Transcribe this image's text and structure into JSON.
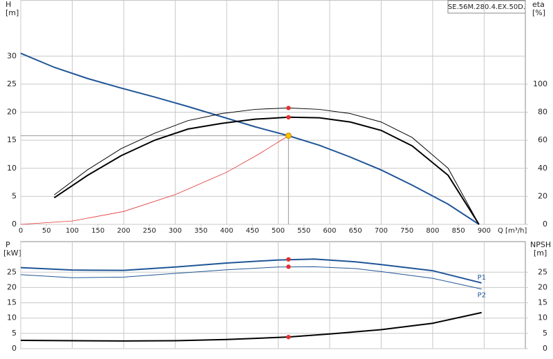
{
  "chart_data": [
    {
      "type": "line",
      "title": "SE.56M.280.4.EX.50D.",
      "xlabel": "Q [m³/h]",
      "ylabel": "H",
      "yunit": "[m]",
      "y2label": "eta",
      "y2unit": "[%]",
      "xlim": [
        0,
        980
      ],
      "xticks": [
        0,
        50,
        100,
        150,
        200,
        250,
        300,
        350,
        400,
        450,
        500,
        550,
        600,
        650,
        700,
        750,
        800,
        850,
        900
      ],
      "ylim": [
        0,
        40
      ],
      "yticks": [
        0,
        5,
        10,
        15,
        20,
        25,
        30
      ],
      "y2lim": [
        0,
        160
      ],
      "y2ticks": [
        0,
        20,
        40,
        60,
        80,
        100
      ],
      "grid": true,
      "series": [
        {
          "color": "#1f5596",
          "width": 2,
          "x": [
            0,
            65,
            130,
            195,
            260,
            325,
            390,
            455,
            520,
            580,
            640,
            700,
            760,
            830,
            890
          ],
          "values": [
            30.5,
            28,
            26,
            24.3,
            22.7,
            21,
            19.2,
            17.4,
            15.8,
            14.1,
            12,
            9.7,
            7,
            3.6,
            0
          ]
        },
        {
          "color": "#000000",
          "width": 2,
          "axis": "y2",
          "x": [
            65,
            130,
            195,
            260,
            325,
            390,
            455,
            520,
            580,
            640,
            700,
            760,
            830,
            890
          ],
          "values": [
            19,
            35,
            49,
            60,
            68,
            72,
            75,
            76.4,
            76,
            73,
            67,
            56,
            35,
            0
          ]
        },
        {
          "color": "#000000",
          "width": 1,
          "axis": "y2",
          "x": [
            65,
            130,
            195,
            260,
            325,
            390,
            455,
            520,
            580,
            640,
            700,
            760,
            830,
            890
          ],
          "values": [
            21,
            39,
            54,
            65,
            74,
            79,
            82,
            83,
            82,
            79,
            73,
            62,
            40,
            0
          ]
        },
        {
          "color": "#e53030",
          "width": 0.8,
          "x": [
            0,
            100,
            200,
            300,
            400,
            460,
            520
          ],
          "values": [
            0,
            0.6,
            2.3,
            5.3,
            9.3,
            12.4,
            15.8
          ]
        }
      ],
      "markers": [
        {
          "x": 520,
          "y": 15.8,
          "color": "#f5c400",
          "crosshair": true
        },
        {
          "x": 520,
          "y": 76.4,
          "color": "#e53030",
          "axis": "y2"
        },
        {
          "x": 520,
          "y": 83,
          "color": "#e53030",
          "axis": "y2"
        }
      ]
    },
    {
      "type": "line",
      "ylabel": "P",
      "yunit": "[kW]",
      "y2label": "NPSH",
      "y2unit": "[m]",
      "xlim": [
        0,
        980
      ],
      "xticks": [
        0,
        100,
        200,
        300,
        400,
        500,
        600,
        700,
        800,
        900
      ],
      "ylim": [
        0,
        35
      ],
      "yticks": [
        0,
        5,
        10,
        15,
        20,
        25
      ],
      "y2lim": [
        0,
        35
      ],
      "y2ticks": [
        0,
        5,
        10,
        15,
        20,
        25
      ],
      "grid": true,
      "series": [
        {
          "name": "P1",
          "color": "#1f5596",
          "width": 2,
          "x": [
            0,
            100,
            200,
            300,
            400,
            500,
            570,
            650,
            700,
            800,
            895
          ],
          "values": [
            26.5,
            25.7,
            25.6,
            26.7,
            28,
            29,
            29.3,
            28.4,
            27.5,
            25.5,
            21.5
          ]
        },
        {
          "name": "P2",
          "color": "#1f5596",
          "width": 1,
          "x": [
            0,
            100,
            200,
            300,
            400,
            500,
            570,
            650,
            700,
            800,
            895
          ],
          "values": [
            24.2,
            23.2,
            23.4,
            24.6,
            25.8,
            26.7,
            26.8,
            26.2,
            25.2,
            23,
            19.5
          ]
        },
        {
          "color": "#000000",
          "width": 2,
          "axis": "y2",
          "x": [
            0,
            200,
            300,
            400,
            520,
            600,
            700,
            800,
            895
          ],
          "values": [
            2.7,
            2.5,
            2.6,
            3,
            3.8,
            4.8,
            6.2,
            8.3,
            11.8
          ]
        }
      ],
      "markers": [
        {
          "x": 520,
          "y": 29.2,
          "color": "#e53030"
        },
        {
          "x": 520,
          "y": 26.8,
          "color": "#e53030"
        },
        {
          "x": 520,
          "y": 3.8,
          "color": "#e53030",
          "axis": "y2"
        }
      ]
    }
  ]
}
